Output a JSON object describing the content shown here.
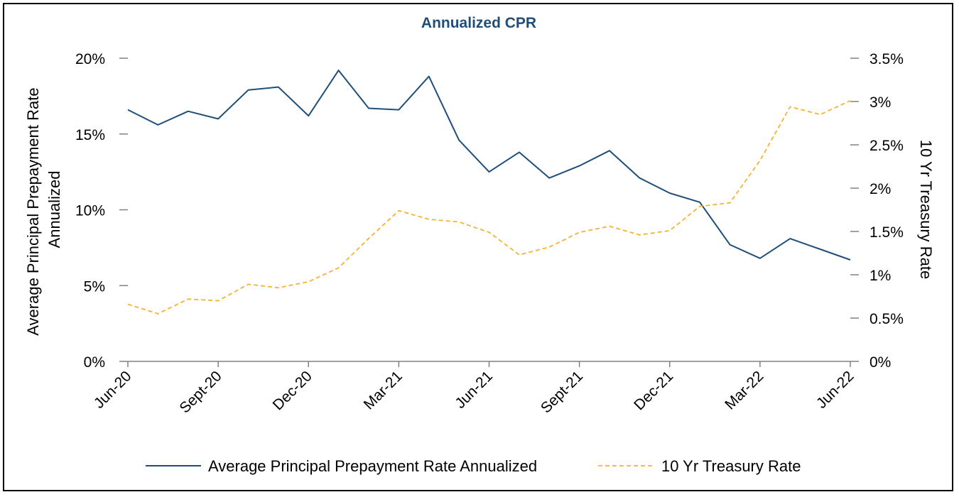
{
  "chart_data": {
    "type": "line",
    "title": "Annualized CPR",
    "ylabel": "Average Principal Prepayment Rate Annualized",
    "y2label": "10 Yr Treasury Rate",
    "ylim": [
      0,
      20
    ],
    "y2lim": [
      0,
      3.5
    ],
    "yticks": [
      "0%",
      "5%",
      "10%",
      "15%",
      "20%"
    ],
    "y2ticks": [
      "0%",
      "0.5%",
      "1%",
      "1.5%",
      "2%",
      "2.5%",
      "3%",
      "3.5%"
    ],
    "x": [
      "Jun-20",
      "Jul-20",
      "Aug-20",
      "Sept-20",
      "Oct-20",
      "Nov-20",
      "Dec-20",
      "Jan-21",
      "Feb-21",
      "Mar-21",
      "Apr-21",
      "May-21",
      "Jun-21",
      "Jul-21",
      "Aug-21",
      "Sept-21",
      "Oct-21",
      "Nov-21",
      "Dec-21",
      "Jan-22",
      "Feb-22",
      "Mar-22",
      "Apr-22",
      "May-22",
      "Jun-22"
    ],
    "xtick_labels": [
      "Jun-20",
      "Sept-20",
      "Dec-20",
      "Mar-21",
      "Jun-21",
      "Sept-21",
      "Dec-21",
      "Mar-22",
      "Jun-22"
    ],
    "xtick_every": 3,
    "series": [
      {
        "name": "Average Principal Prepayment Rate Annualized",
        "axis": "left",
        "style": "solid",
        "color": "#1f4e79",
        "values": [
          16.6,
          15.6,
          16.5,
          16.0,
          17.9,
          18.1,
          16.2,
          19.2,
          16.7,
          16.6,
          18.8,
          14.6,
          12.5,
          13.8,
          12.1,
          12.9,
          13.9,
          12.1,
          11.1,
          10.5,
          7.7,
          6.8,
          8.1,
          7.4,
          6.7
        ]
      },
      {
        "name": "10 Yr Treasury Rate",
        "axis": "right",
        "style": "dashed",
        "color": "#f5b335",
        "values": [
          0.66,
          0.55,
          0.72,
          0.7,
          0.89,
          0.85,
          0.92,
          1.08,
          1.42,
          1.74,
          1.64,
          1.61,
          1.49,
          1.23,
          1.32,
          1.49,
          1.56,
          1.46,
          1.51,
          1.79,
          1.83,
          2.32,
          2.94,
          2.85,
          3.01
        ]
      }
    ],
    "legend_position": "bottom",
    "grid": false
  },
  "colors": {
    "title": "#1f4e79",
    "axis_tick": "#808080"
  }
}
